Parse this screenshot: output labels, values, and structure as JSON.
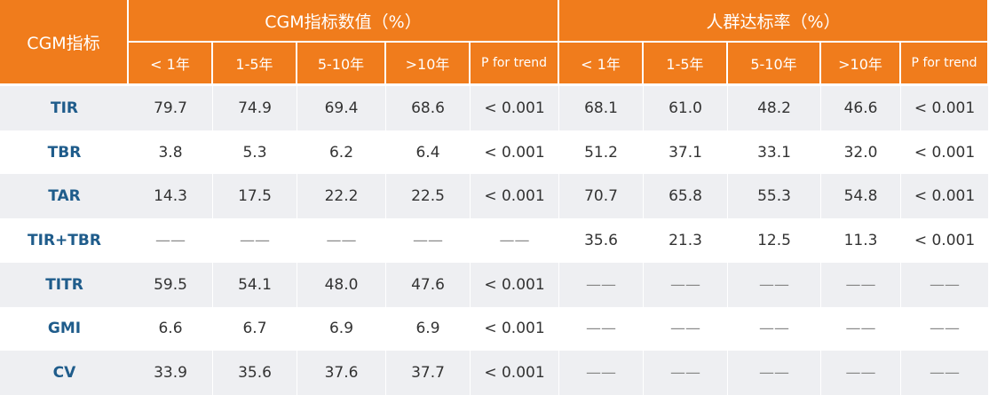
{
  "header": {
    "corner": "CGM指标",
    "groups": [
      {
        "title": "CGM指标数值（%）",
        "columns": [
          "< 1年",
          "1-5年",
          "5-10年",
          ">10年",
          "P for trend"
        ]
      },
      {
        "title": "人群达标率（%）",
        "columns": [
          "< 1年",
          "1-5年",
          "5-10年",
          ">10年",
          "P for trend"
        ]
      }
    ]
  },
  "rows": [
    {
      "label": "TIR",
      "cells": [
        "79.7",
        "74.9",
        "69.4",
        "68.6",
        "< 0.001",
        "68.1",
        "61.0",
        "48.2",
        "46.6",
        "< 0.001"
      ]
    },
    {
      "label": "TBR",
      "cells": [
        "3.8",
        "5.3",
        "6.2",
        "6.4",
        "< 0.001",
        "51.2",
        "37.1",
        "33.1",
        "32.0",
        "< 0.001"
      ]
    },
    {
      "label": "TAR",
      "cells": [
        "14.3",
        "17.5",
        "22.2",
        "22.5",
        "< 0.001",
        "70.7",
        "65.8",
        "55.3",
        "54.8",
        "< 0.001"
      ]
    },
    {
      "label": "TIR+TBR",
      "cells": [
        "——",
        "——",
        "——",
        "——",
        "——",
        "35.6",
        "21.3",
        "12.5",
        "11.3",
        "< 0.001"
      ]
    },
    {
      "label": "TITR",
      "cells": [
        "59.5",
        "54.1",
        "48.0",
        "47.6",
        "< 0.001",
        "——",
        "——",
        "——",
        "——",
        "——"
      ]
    },
    {
      "label": "GMI",
      "cells": [
        "6.6",
        "6.7",
        "6.9",
        "6.9",
        "< 0.001",
        "——",
        "——",
        "——",
        "——",
        "——"
      ]
    },
    {
      "label": "CV",
      "cells": [
        "33.9",
        "35.6",
        "37.6",
        "37.7",
        "< 0.001",
        "——",
        "——",
        "——",
        "——",
        "——"
      ]
    }
  ]
}
